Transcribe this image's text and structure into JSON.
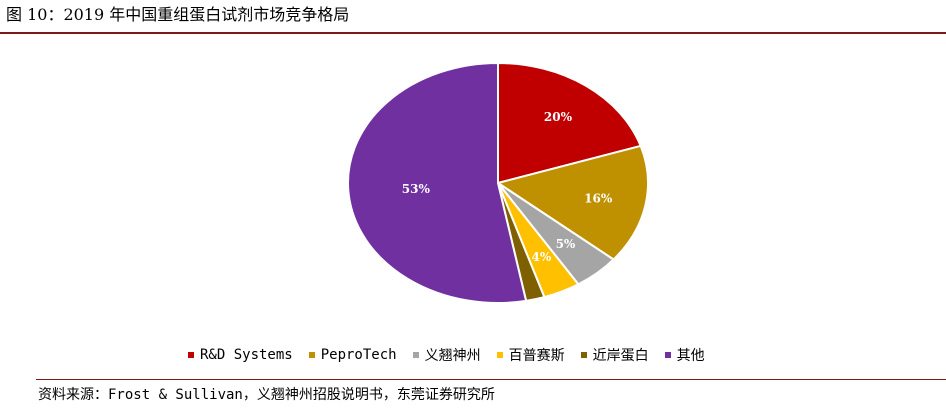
{
  "title": "图 10：2019 年中国重组蛋白试剂市场竞争格局",
  "source": "资料来源：Frost & Sullivan，义翘神州招股说明书，东莞证券研究所",
  "chart_data": {
    "type": "pie",
    "slices": [
      {
        "name": "R&D Systems",
        "value": 20,
        "label": "20%",
        "color": "#c00000"
      },
      {
        "name": "PeproTech",
        "value": 16,
        "label": "16%",
        "color": "#bf9000"
      },
      {
        "name": "义翘神州",
        "value": 5,
        "label": "5%",
        "color": "#a5a5a5"
      },
      {
        "name": "百普赛斯",
        "value": 4,
        "label": "4%",
        "color": "#ffc000"
      },
      {
        "name": "近岸蛋白",
        "value": 2,
        "label": "",
        "color": "#7f6000"
      },
      {
        "name": "其他",
        "value": 53,
        "label": "53%",
        "color": "#7030a0"
      }
    ],
    "legend_position": "bottom"
  }
}
